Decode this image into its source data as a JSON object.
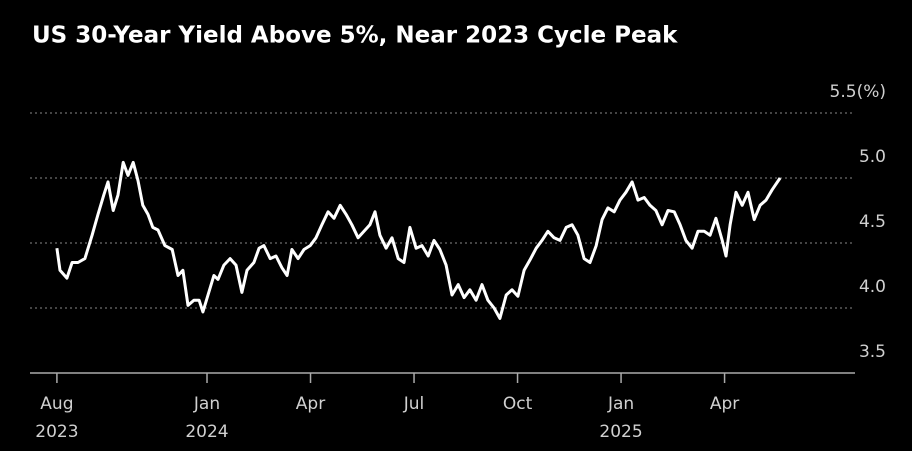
{
  "chart_data": {
    "type": "line",
    "title": "US 30-Year Yield Above 5%, Near 2023 Cycle Peak",
    "x": [
      0.65,
      0.74,
      0.94,
      1.09,
      1.26,
      1.46,
      1.67,
      1.84,
      2.01,
      2.13,
      2.28,
      2.42,
      2.57,
      2.71,
      2.86,
      3.0,
      3.14,
      3.29,
      3.43,
      3.58,
      3.78,
      3.99,
      4.16,
      4.3,
      4.45,
      4.62,
      4.77,
      4.88,
      5.03,
      5.2,
      5.32,
      5.49,
      5.67,
      5.84,
      6.01,
      6.16,
      6.36,
      6.51,
      6.65,
      6.83,
      7.0,
      7.17,
      7.32,
      7.46,
      7.64,
      7.81,
      7.99,
      8.16,
      8.33,
      8.51,
      8.68,
      8.86,
      9.03,
      9.2,
      9.38,
      9.55,
      9.72,
      9.87,
      10.01,
      10.19,
      10.36,
      10.54,
      10.71,
      10.88,
      11.06,
      11.23,
      11.41,
      11.58,
      11.75,
      11.93,
      12.1,
      12.28,
      12.45,
      12.62,
      12.8,
      12.97,
      13.14,
      13.32,
      13.49,
      13.67,
      13.84,
      14.01,
      14.19,
      14.36,
      14.54,
      14.71,
      14.88,
      15.06,
      15.23,
      15.41,
      15.58,
      15.75,
      15.93,
      16.1,
      16.28,
      16.45,
      16.62,
      16.8,
      16.97,
      17.14,
      17.32,
      17.49,
      17.67,
      17.84,
      18.01,
      18.19,
      18.36,
      18.54,
      18.71,
      18.88,
      19.06,
      19.23,
      19.41,
      19.58,
      19.75,
      19.93,
      20.04,
      20.16,
      20.33,
      20.51,
      20.68,
      20.86,
      21.03,
      21.2,
      21.38,
      21.61
    ],
    "series": [
      {
        "name": "US 30-Year Yield",
        "color": "#ffffff",
        "values": [
          4.46,
          4.29,
          4.23,
          4.35,
          4.35,
          4.38,
          4.56,
          4.72,
          4.87,
          4.97,
          4.75,
          4.87,
          5.12,
          5.02,
          5.12,
          4.98,
          4.79,
          4.72,
          4.62,
          4.6,
          4.48,
          4.45,
          4.25,
          4.29,
          4.02,
          4.06,
          4.06,
          3.97,
          4.1,
          4.25,
          4.22,
          4.33,
          4.38,
          4.33,
          4.12,
          4.29,
          4.35,
          4.46,
          4.48,
          4.38,
          4.4,
          4.31,
          4.25,
          4.45,
          4.38,
          4.45,
          4.48,
          4.54,
          4.64,
          4.74,
          4.69,
          4.79,
          4.72,
          4.64,
          4.54,
          4.59,
          4.64,
          4.74,
          4.56,
          4.46,
          4.54,
          4.38,
          4.35,
          4.62,
          4.46,
          4.48,
          4.4,
          4.52,
          4.45,
          4.33,
          4.1,
          4.18,
          4.08,
          4.14,
          4.06,
          4.18,
          4.06,
          4.0,
          3.92,
          4.1,
          4.14,
          4.09,
          4.29,
          4.37,
          4.46,
          4.52,
          4.59,
          4.54,
          4.52,
          4.62,
          4.64,
          4.56,
          4.38,
          4.35,
          4.48,
          4.68,
          4.77,
          4.74,
          4.83,
          4.89,
          4.97,
          4.83,
          4.85,
          4.79,
          4.75,
          4.64,
          4.75,
          4.74,
          4.64,
          4.52,
          4.46,
          4.59,
          4.59,
          4.56,
          4.69,
          4.52,
          4.4,
          4.64,
          4.89,
          4.79,
          4.89,
          4.68,
          4.79,
          4.83,
          4.91,
          5.0
        ]
      }
    ],
    "xlim": [
      -0.13,
      23.78
    ],
    "xticks": [
      {
        "value": 0.65,
        "label": "Aug"
      },
      {
        "value": 5,
        "label": "Jan"
      },
      {
        "value": 8,
        "label": "Apr"
      },
      {
        "value": 11,
        "label": "Jul"
      },
      {
        "value": 14,
        "label": "Oct"
      },
      {
        "value": 17,
        "label": "Jan"
      },
      {
        "value": 20,
        "label": "Apr"
      }
    ],
    "xtick_years": [
      {
        "value": 0.65,
        "label": "2023"
      },
      {
        "value": 5,
        "label": "2024"
      },
      {
        "value": 17,
        "label": "2025"
      }
    ],
    "ylim": [
      3.5,
      5.6
    ],
    "yticks": [
      {
        "value": 3.5,
        "label": "3.5"
      },
      {
        "value": 4,
        "label": "4.0"
      },
      {
        "value": 4.5,
        "label": "4.5"
      },
      {
        "value": 5,
        "label": "5.0"
      },
      {
        "value": 5.5,
        "label": "5.5(%)"
      }
    ],
    "grid": true
  }
}
